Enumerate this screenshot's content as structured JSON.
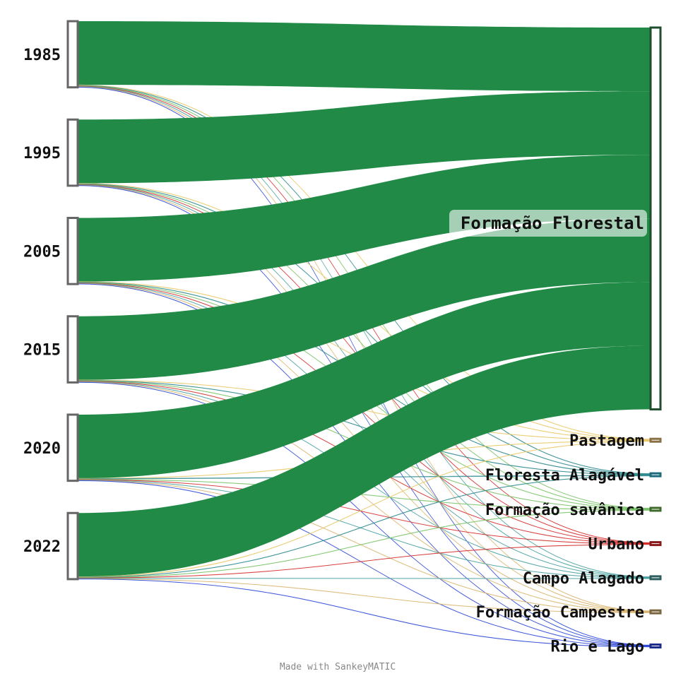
{
  "chart_data": {
    "type": "sankey",
    "sources": [
      "1985",
      "1995",
      "2005",
      "2015",
      "2020",
      "2022"
    ],
    "targets": [
      {
        "name": "Formação Florestal",
        "color": "#1f4d2e"
      },
      {
        "name": "Pastagem",
        "color": "#8a7145"
      },
      {
        "name": "Floresta Alagável",
        "color": "#1c6b7a"
      },
      {
        "name": "Formação savânica",
        "color": "#3f6b2c"
      },
      {
        "name": "Urbano",
        "color": "#8b1a1a"
      },
      {
        "name": "Campo Alagado",
        "color": "#2e5e5e"
      },
      {
        "name": "Formação Campestre",
        "color": "#7a6640"
      },
      {
        "name": "Rio e Lago",
        "color": "#1e2d8c"
      }
    ],
    "source_node_color": "#666666",
    "main_flow_color": "#218a47",
    "minor_flow_colors": {
      "Pastagem": "#e8c96a",
      "Floresta Alagável": "#2e8a8f",
      "Formação savânica": "#7cc46a",
      "Urbano": "#d42a2a",
      "Campo Alagado": "#4aa0a0",
      "Formação Campestre": "#d9b36a",
      "Rio e Lago": "#2a46d6"
    },
    "flows": [
      {
        "from": "1985",
        "to": "Formação Florestal",
        "value": 96.2
      },
      {
        "from": "1985",
        "to": "Pastagem",
        "value": 0.6
      },
      {
        "from": "1985",
        "to": "Floresta Alagável",
        "value": 0.6
      },
      {
        "from": "1985",
        "to": "Formação savânica",
        "value": 0.6
      },
      {
        "from": "1985",
        "to": "Urbano",
        "value": 0.5
      },
      {
        "from": "1985",
        "to": "Campo Alagado",
        "value": 0.5
      },
      {
        "from": "1985",
        "to": "Formação Campestre",
        "value": 0.5
      },
      {
        "from": "1985",
        "to": "Rio e Lago",
        "value": 0.5
      },
      {
        "from": "1995",
        "to": "Formação Florestal",
        "value": 96.2
      },
      {
        "from": "1995",
        "to": "Pastagem",
        "value": 0.6
      },
      {
        "from": "1995",
        "to": "Floresta Alagável",
        "value": 0.6
      },
      {
        "from": "1995",
        "to": "Formação savânica",
        "value": 0.6
      },
      {
        "from": "1995",
        "to": "Urbano",
        "value": 0.5
      },
      {
        "from": "1995",
        "to": "Campo Alagado",
        "value": 0.5
      },
      {
        "from": "1995",
        "to": "Formação Campestre",
        "value": 0.5
      },
      {
        "from": "1995",
        "to": "Rio e Lago",
        "value": 0.5
      },
      {
        "from": "2005",
        "to": "Formação Florestal",
        "value": 96.2
      },
      {
        "from": "2005",
        "to": "Pastagem",
        "value": 0.6
      },
      {
        "from": "2005",
        "to": "Floresta Alagável",
        "value": 0.6
      },
      {
        "from": "2005",
        "to": "Formação savânica",
        "value": 0.6
      },
      {
        "from": "2005",
        "to": "Urbano",
        "value": 0.5
      },
      {
        "from": "2005",
        "to": "Campo Alagado",
        "value": 0.5
      },
      {
        "from": "2005",
        "to": "Formação Campestre",
        "value": 0.5
      },
      {
        "from": "2005",
        "to": "Rio e Lago",
        "value": 0.5
      },
      {
        "from": "2015",
        "to": "Formação Florestal",
        "value": 96.2
      },
      {
        "from": "2015",
        "to": "Pastagem",
        "value": 0.6
      },
      {
        "from": "2015",
        "to": "Floresta Alagável",
        "value": 0.6
      },
      {
        "from": "2015",
        "to": "Formação savânica",
        "value": 0.6
      },
      {
        "from": "2015",
        "to": "Urbano",
        "value": 0.5
      },
      {
        "from": "2015",
        "to": "Campo Alagado",
        "value": 0.5
      },
      {
        "from": "2015",
        "to": "Formação Campestre",
        "value": 0.5
      },
      {
        "from": "2015",
        "to": "Rio e Lago",
        "value": 0.5
      },
      {
        "from": "2020",
        "to": "Formação Florestal",
        "value": 96.2
      },
      {
        "from": "2020",
        "to": "Pastagem",
        "value": 0.6
      },
      {
        "from": "2020",
        "to": "Floresta Alagável",
        "value": 0.6
      },
      {
        "from": "2020",
        "to": "Formação savânica",
        "value": 0.6
      },
      {
        "from": "2020",
        "to": "Urbano",
        "value": 0.5
      },
      {
        "from": "2020",
        "to": "Campo Alagado",
        "value": 0.5
      },
      {
        "from": "2020",
        "to": "Formação Campestre",
        "value": 0.5
      },
      {
        "from": "2020",
        "to": "Rio e Lago",
        "value": 0.5
      },
      {
        "from": "2022",
        "to": "Formação Florestal",
        "value": 96.2
      },
      {
        "from": "2022",
        "to": "Pastagem",
        "value": 0.6
      },
      {
        "from": "2022",
        "to": "Floresta Alagável",
        "value": 0.6
      },
      {
        "from": "2022",
        "to": "Formação savânica",
        "value": 0.6
      },
      {
        "from": "2022",
        "to": "Urbano",
        "value": 0.5
      },
      {
        "from": "2022",
        "to": "Campo Alagado",
        "value": 0.5
      },
      {
        "from": "2022",
        "to": "Formação Campestre",
        "value": 0.5
      },
      {
        "from": "2022",
        "to": "Rio e Lago",
        "value": 0.5
      }
    ]
  },
  "credit": "Made with SankeyMATIC"
}
